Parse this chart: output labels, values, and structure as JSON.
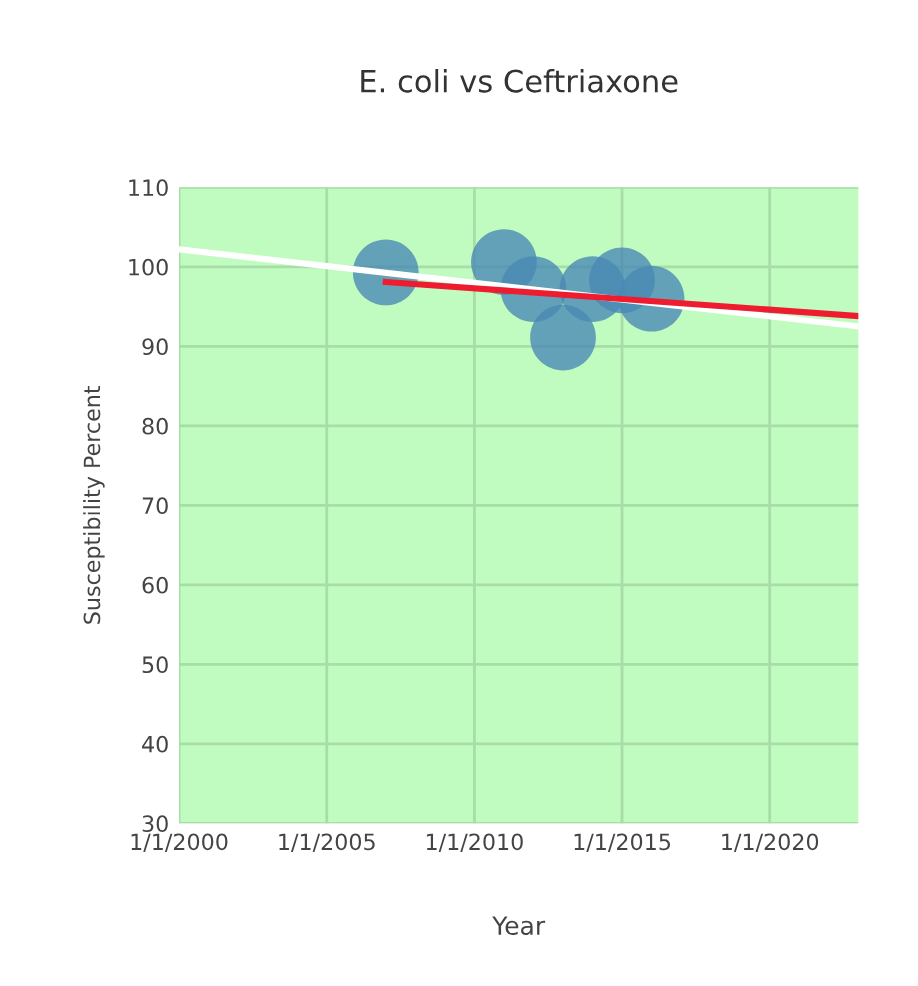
{
  "chart_data": {
    "type": "scatter",
    "title": "E. coli vs Ceftriaxone",
    "xlabel": "Year",
    "ylabel": "Susceptibility Percent",
    "x": [
      "2007-01-01",
      "2011-01-01",
      "2012-01-01",
      "2013-01-01",
      "2014-01-01",
      "2015-01-01",
      "2016-01-01"
    ],
    "series": [
      {
        "color": "#4a8ab4",
        "marker": "circle",
        "values": [
          99.3,
          100.6,
          97.2,
          91.1,
          97.2,
          98.3,
          96.0
        ]
      },
      {
        "type": "line",
        "color": "#ffffff",
        "x": [
          "2000-01-01",
          "2023-01-01"
        ],
        "values": [
          102.2,
          92.5
        ]
      },
      {
        "type": "line",
        "color": "#ee1c2e",
        "x": [
          "2007-01-01",
          "2023-01-01"
        ],
        "values": [
          98.1,
          93.8
        ]
      }
    ],
    "xlim": [
      "2000-01-01",
      "2023-01-01"
    ],
    "xticks": [
      {
        "value": "2000-01-01",
        "label": "1/1/2000"
      },
      {
        "value": "2005-01-01",
        "label": "1/1/2005"
      },
      {
        "value": "2010-01-01",
        "label": "1/1/2010"
      },
      {
        "value": "2015-01-01",
        "label": "1/1/2015"
      },
      {
        "value": "2020-01-01",
        "label": "1/1/2020"
      }
    ],
    "ylim": [
      30,
      110
    ],
    "yticks": [
      30,
      40,
      50,
      60,
      70,
      80,
      90,
      100,
      110
    ],
    "grid": true
  }
}
